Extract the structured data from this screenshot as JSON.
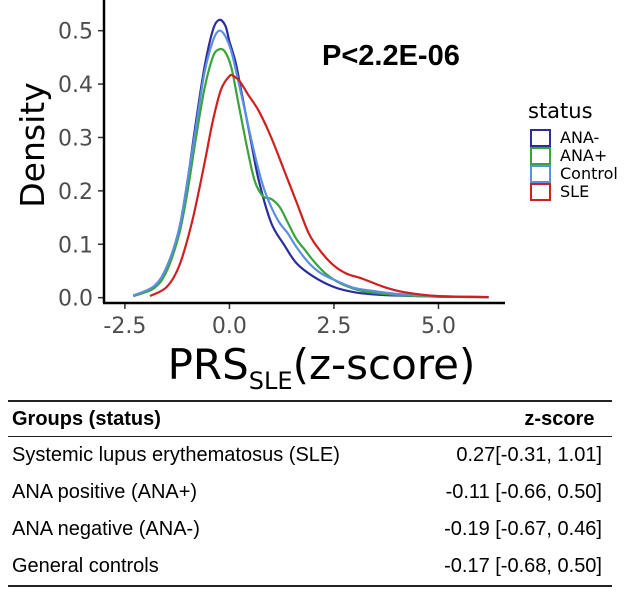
{
  "chart_data": {
    "type": "line",
    "subtype": "density",
    "title": "",
    "annotation": "P<2.2E-06",
    "xlabel": {
      "main": "PRS",
      "sub": "SLE",
      "suffix": "(z-score)"
    },
    "ylabel": "Density",
    "xlim": [
      -3.0,
      6.4
    ],
    "ylim": [
      -0.01,
      0.55
    ],
    "xticks": [
      -2.5,
      0.0,
      2.5,
      5.0
    ],
    "xtick_labels": [
      "-2.5",
      "0.0",
      "2.5",
      "5.0"
    ],
    "yticks": [
      0.0,
      0.1,
      0.2,
      0.3,
      0.4,
      0.5
    ],
    "ytick_labels": [
      "0.0",
      "0.1",
      "0.2",
      "0.3",
      "0.4",
      "0.5"
    ],
    "legend": {
      "title": "status",
      "position": "right"
    },
    "series": [
      {
        "name": "ANA-",
        "color": "#2b2d9e",
        "x": [
          -2.3,
          -1.8,
          -1.5,
          -1.2,
          -1.0,
          -0.8,
          -0.6,
          -0.4,
          -0.25,
          -0.1,
          0.0,
          0.15,
          0.3,
          0.5,
          0.7,
          1.0,
          1.3,
          1.6,
          2.0,
          2.5,
          3.0,
          3.5,
          4.0,
          5.0,
          6.2
        ],
        "y": [
          0.003,
          0.02,
          0.055,
          0.13,
          0.22,
          0.33,
          0.43,
          0.5,
          0.52,
          0.51,
          0.48,
          0.44,
          0.38,
          0.3,
          0.22,
          0.14,
          0.1,
          0.065,
          0.04,
          0.02,
          0.01,
          0.006,
          0.004,
          0.002,
          0.001
        ]
      },
      {
        "name": "ANA+",
        "color": "#3aa33a",
        "x": [
          -2.3,
          -1.8,
          -1.5,
          -1.2,
          -1.0,
          -0.8,
          -0.6,
          -0.4,
          -0.25,
          -0.1,
          0.05,
          0.2,
          0.4,
          0.6,
          0.8,
          1.0,
          1.2,
          1.4,
          1.6,
          1.8,
          2.0,
          2.3,
          2.7,
          3.2,
          4.0,
          5.0,
          6.2
        ],
        "y": [
          0.003,
          0.018,
          0.05,
          0.12,
          0.2,
          0.3,
          0.39,
          0.45,
          0.465,
          0.46,
          0.43,
          0.37,
          0.29,
          0.22,
          0.19,
          0.185,
          0.17,
          0.14,
          0.11,
          0.09,
          0.07,
          0.045,
          0.025,
          0.012,
          0.005,
          0.002,
          0.001
        ]
      },
      {
        "name": "Control",
        "color": "#5b8fe0",
        "x": [
          -2.3,
          -1.8,
          -1.5,
          -1.2,
          -1.0,
          -0.8,
          -0.6,
          -0.4,
          -0.25,
          -0.1,
          0.05,
          0.2,
          0.4,
          0.6,
          0.8,
          1.0,
          1.2,
          1.4,
          1.6,
          1.9,
          2.2,
          2.6,
          3.0,
          3.5,
          4.0,
          5.0,
          6.2
        ],
        "y": [
          0.004,
          0.022,
          0.058,
          0.13,
          0.22,
          0.32,
          0.42,
          0.48,
          0.5,
          0.49,
          0.46,
          0.41,
          0.34,
          0.27,
          0.21,
          0.17,
          0.14,
          0.12,
          0.095,
          0.065,
          0.045,
          0.03,
          0.018,
          0.012,
          0.007,
          0.003,
          0.001
        ]
      },
      {
        "name": "SLE",
        "color": "#d11f1f",
        "x": [
          -1.9,
          -1.5,
          -1.2,
          -0.9,
          -0.6,
          -0.4,
          -0.2,
          0.0,
          0.1,
          0.25,
          0.45,
          0.7,
          1.0,
          1.3,
          1.6,
          1.9,
          2.2,
          2.5,
          2.8,
          3.2,
          3.7,
          4.2,
          5.0,
          6.2
        ],
        "y": [
          0.003,
          0.02,
          0.06,
          0.14,
          0.25,
          0.33,
          0.39,
          0.415,
          0.415,
          0.405,
          0.38,
          0.35,
          0.3,
          0.24,
          0.18,
          0.12,
          0.085,
          0.06,
          0.045,
          0.035,
          0.02,
          0.01,
          0.003,
          0.001
        ]
      }
    ]
  },
  "table": {
    "headers": {
      "group": "Groups (status)",
      "z": "z-score"
    },
    "rows": [
      {
        "group": "Systemic lupus erythematosus (SLE)",
        "z": "0.27[-0.31, 1.01]"
      },
      {
        "group": "ANA positive (ANA+)",
        "z": "-0.11 [-0.66, 0.50]"
      },
      {
        "group": "ANA negative (ANA-)",
        "z": "-0.19 [-0.67, 0.46]"
      },
      {
        "group": "General controls",
        "z": "-0.17 [-0.68, 0.50]"
      }
    ]
  }
}
